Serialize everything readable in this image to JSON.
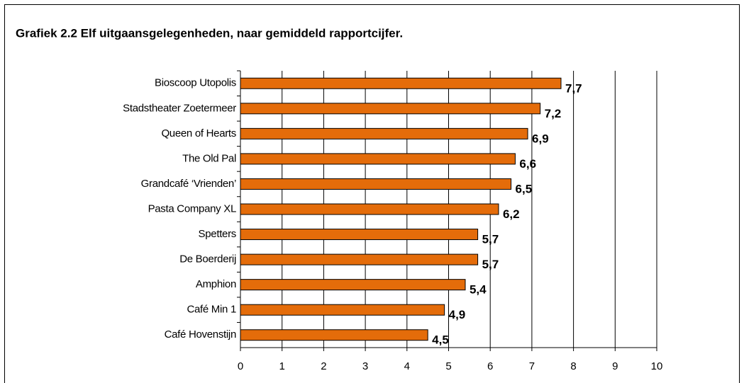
{
  "chart_data": {
    "type": "bar",
    "orientation": "horizontal",
    "title": "Grafiek 2.2 Elf uitgaansgelegenheden, naar gemiddeld rapportcijfer.",
    "categories": [
      "Bioscoop Utopolis",
      "Stadstheater Zoetermeer",
      "Queen of Hearts",
      "The Old Pal",
      "Grandcafé ‘Vrienden’",
      "Pasta Company XL",
      "Spetters",
      "De Boerderij",
      "Amphion",
      "Café Min 1",
      "Café Hovenstijn"
    ],
    "values": [
      7.7,
      7.2,
      6.9,
      6.6,
      6.5,
      6.2,
      5.7,
      5.7,
      5.4,
      4.9,
      4.5
    ],
    "value_labels": [
      "7,7",
      "7,2",
      "6,9",
      "6,6",
      "6,5",
      "6,2",
      "5,7",
      "5,7",
      "5,4",
      "4,9",
      "4,5"
    ],
    "color": "#e46c0a",
    "xlim": [
      0,
      10
    ],
    "xticks": [
      0,
      1,
      2,
      3,
      4,
      5,
      6,
      7,
      8,
      9,
      10
    ],
    "grid": true
  }
}
